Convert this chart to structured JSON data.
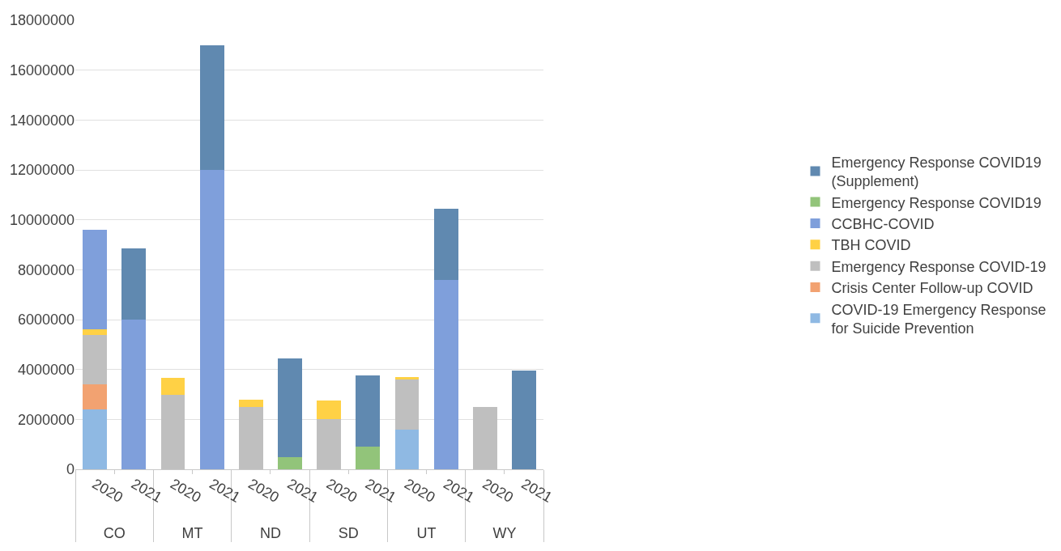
{
  "chart_data": {
    "type": "bar",
    "stacked": true,
    "categories": [
      "2020",
      "2021",
      "2020",
      "2021",
      "2020",
      "2021",
      "2020",
      "2021",
      "2020",
      "2021",
      "2020",
      "2021"
    ],
    "annotations": [
      "CO",
      "MT",
      "ND",
      "SD",
      "UT",
      "WY"
    ],
    "series": [
      {
        "name": "COVID-19 Emergency Response for Suicide Prevention",
        "color": "#8fb9e3",
        "values": [
          2400000,
          null,
          null,
          null,
          null,
          null,
          null,
          null,
          1600000,
          null,
          null,
          null
        ]
      },
      {
        "name": "Crisis Center Follow-up COVID",
        "color": "#f2a271",
        "values": [
          1000000,
          null,
          null,
          null,
          null,
          null,
          null,
          null,
          null,
          null,
          null,
          null
        ]
      },
      {
        "name": "Emergency Response COVID-19",
        "color": "#bfbfbf",
        "values": [
          2000000,
          null,
          3000000,
          null,
          2500000,
          null,
          2000000,
          null,
          2000000,
          null,
          2500000,
          null
        ]
      },
      {
        "name": "TBH COVID",
        "color": "#ffd145",
        "values": [
          200000,
          null,
          650000,
          null,
          280000,
          null,
          750000,
          null,
          100000,
          null,
          null,
          null
        ]
      },
      {
        "name": "CCBHC-COVID",
        "color": "#7f9fdb",
        "values": [
          4000000,
          6000000,
          null,
          12000000,
          null,
          null,
          null,
          null,
          null,
          7600000,
          null,
          null
        ]
      },
      {
        "name": "Emergency Response COVID19",
        "color": "#92c47a",
        "values": [
          null,
          null,
          null,
          null,
          null,
          500000,
          null,
          900000,
          null,
          null,
          null,
          null
        ]
      },
      {
        "name": "Emergency Response COVID19 (Supplement)",
        "color": "#6089b0",
        "values": [
          null,
          2850000,
          null,
          5000000,
          null,
          3950000,
          null,
          2870000,
          null,
          2850000,
          null,
          3950000
        ]
      }
    ],
    "ylim": [
      0,
      18000000
    ],
    "yticks": [
      0,
      2000000,
      4000000,
      6000000,
      8000000,
      10000000,
      12000000,
      14000000,
      16000000,
      18000000
    ],
    "grid": "y",
    "legend": "right"
  }
}
